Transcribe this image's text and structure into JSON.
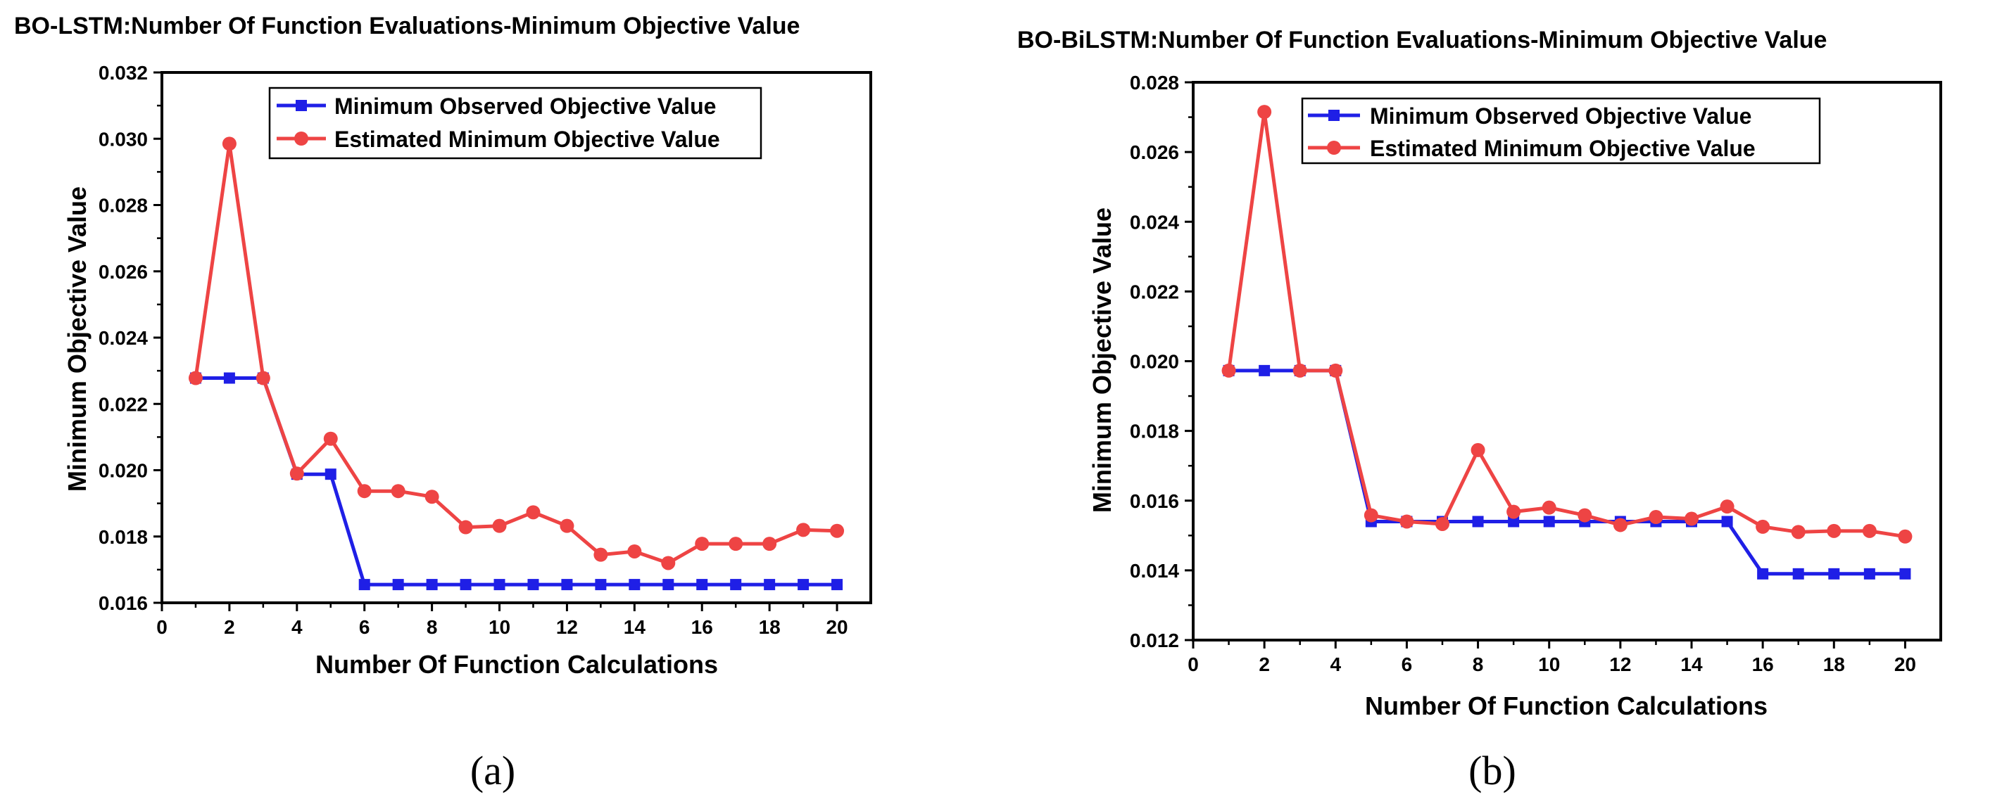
{
  "chart_data": [
    {
      "type": "line",
      "title": "BO-LSTM:Number Of Function Evaluations-Minimum Objective Value",
      "xlabel": "Number Of Function Calculations",
      "ylabel": "Minimum Objective Value",
      "panel_label": "(a)",
      "xlim": [
        0,
        21
      ],
      "ylim": [
        0.016,
        0.032
      ],
      "xticks": [
        "0",
        "2",
        "4",
        "6",
        "8",
        "10",
        "12",
        "14",
        "16",
        "18",
        "20"
      ],
      "yticks": [
        "0.016",
        "0.018",
        "0.020",
        "0.022",
        "0.024",
        "0.026",
        "0.028",
        "0.030",
        "0.032"
      ],
      "x": [
        1,
        2,
        3,
        4,
        5,
        6,
        7,
        8,
        9,
        10,
        11,
        12,
        13,
        14,
        15,
        16,
        17,
        18,
        19,
        20
      ],
      "legend_position": "top-right",
      "series": [
        {
          "name": "Minimum Observed Objective Value",
          "color": "#1f1fe6",
          "marker": "square",
          "values": [
            0.02278,
            0.02278,
            0.02278,
            0.01988,
            0.01988,
            0.01655,
            0.01655,
            0.01655,
            0.01655,
            0.01655,
            0.01655,
            0.01655,
            0.01655,
            0.01655,
            0.01655,
            0.01655,
            0.01655,
            0.01655,
            0.01655,
            0.01655
          ]
        },
        {
          "name": "Estimated Minimum Objective Value",
          "color": "#ee4444",
          "marker": "circle",
          "values": [
            0.02278,
            0.02985,
            0.02278,
            0.0199,
            0.02095,
            0.01937,
            0.01937,
            0.0192,
            0.01828,
            0.01832,
            0.01873,
            0.01832,
            0.01745,
            0.01755,
            0.0172,
            0.01778,
            0.01778,
            0.01778,
            0.0182,
            0.01817
          ]
        }
      ]
    },
    {
      "type": "line",
      "title": "BO-BiLSTM:Number Of Function Evaluations-Minimum Objective Value",
      "xlabel": "Number Of Function Calculations",
      "ylabel": "Minimum Objective Value",
      "panel_label": "(b)",
      "xlim": [
        0,
        21
      ],
      "ylim": [
        0.012,
        0.028
      ],
      "xticks": [
        "0",
        "2",
        "4",
        "6",
        "8",
        "10",
        "12",
        "14",
        "16",
        "18",
        "20"
      ],
      "yticks": [
        "0.012",
        "0.014",
        "0.016",
        "0.018",
        "0.020",
        "0.022",
        "0.024",
        "0.026",
        "0.028"
      ],
      "x": [
        1,
        2,
        3,
        4,
        5,
        6,
        7,
        8,
        9,
        10,
        11,
        12,
        13,
        14,
        15,
        16,
        17,
        18,
        19,
        20
      ],
      "legend_position": "top-right",
      "series": [
        {
          "name": "Minimum Observed Objective Value",
          "color": "#1f1fe6",
          "marker": "square",
          "values": [
            0.01973,
            0.01973,
            0.01973,
            0.01973,
            0.0154,
            0.0154,
            0.0154,
            0.0154,
            0.0154,
            0.0154,
            0.0154,
            0.0154,
            0.0154,
            0.0154,
            0.0154,
            0.0139,
            0.0139,
            0.0139,
            0.0139,
            0.0139
          ]
        },
        {
          "name": "Estimated Minimum Objective Value",
          "color": "#ee4444",
          "marker": "circle",
          "values": [
            0.01973,
            0.02715,
            0.01973,
            0.01973,
            0.01558,
            0.0154,
            0.01533,
            0.01745,
            0.01568,
            0.0158,
            0.01558,
            0.0153,
            0.01553,
            0.01548,
            0.01583,
            0.01525,
            0.0151,
            0.01513,
            0.01513,
            0.01497
          ]
        }
      ]
    }
  ]
}
